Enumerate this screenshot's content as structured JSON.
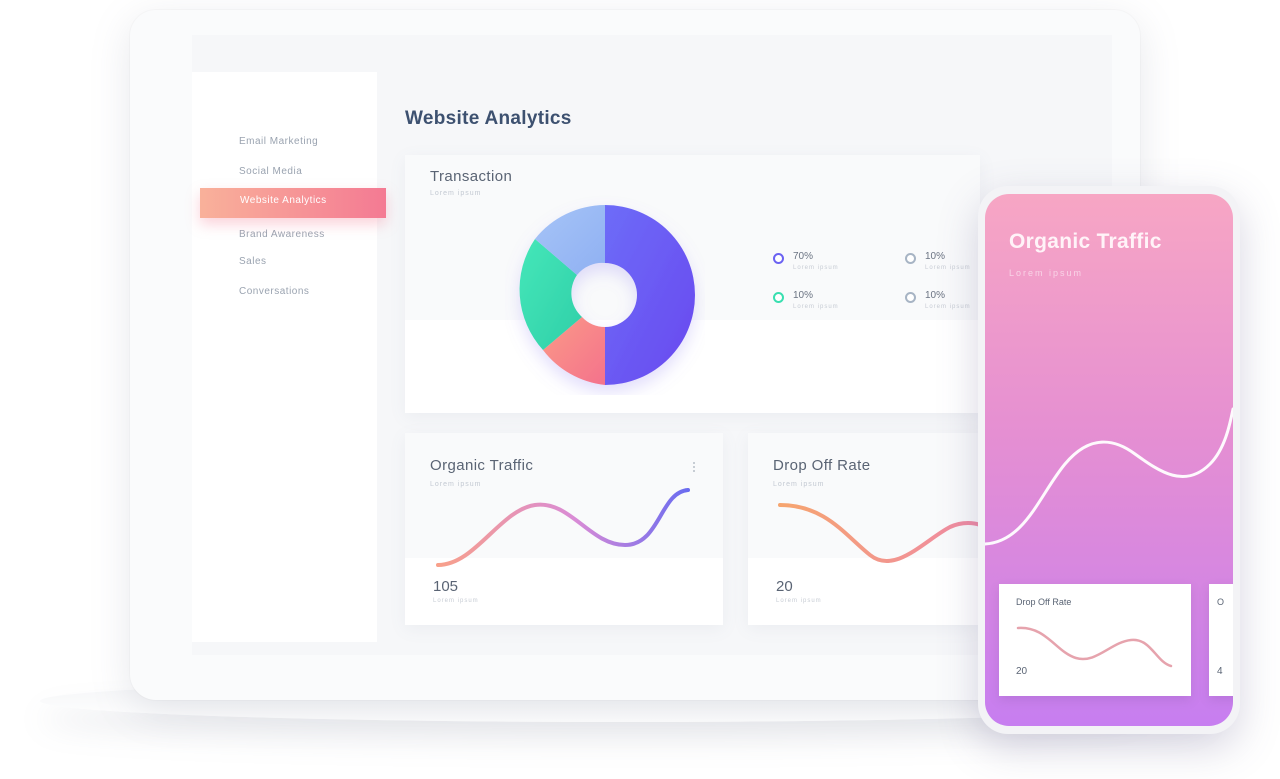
{
  "header": {
    "page_title": "Website Analytics"
  },
  "sidebar": {
    "items": [
      {
        "label": "Email Marketing"
      },
      {
        "label": "Social Media"
      },
      {
        "label": "Website Analytics",
        "active": true
      },
      {
        "label": "Brand Awareness"
      },
      {
        "label": "Sales"
      },
      {
        "label": "Conversations"
      }
    ]
  },
  "transaction": {
    "title": "Transaction",
    "subtitle": "Lorem ipsum",
    "legend": [
      {
        "value": "70%",
        "label": "Lorem ipsum",
        "color": "#6b62f2"
      },
      {
        "value": "10%",
        "label": "Lorem ipsum",
        "color": "#a7b4c4"
      },
      {
        "value": "10%",
        "label": "Lorem ipsum",
        "color": "#39dfb0"
      },
      {
        "value": "10%",
        "label": "Lorem ipsum",
        "color": "#a7b4c4"
      }
    ]
  },
  "organic_traffic": {
    "title": "Organic Traffic",
    "subtitle": "Lorem ipsum",
    "value": "105",
    "value_sub": "Lorem ipsum",
    "menu_icon": "dot-menu"
  },
  "drop_off": {
    "title": "Drop Off Rate",
    "subtitle": "Lorem ipsum",
    "value": "20",
    "value_sub": "Lorem ipsum"
  },
  "phone": {
    "title": "Organic Traffic",
    "subtitle": "Lorem ipsum",
    "card_title": "Drop Off Rate",
    "card_value": "20",
    "second_card_letter": "O",
    "second_card_value": "4"
  },
  "colors": {
    "accent_gradient_start": "#f9b19a",
    "accent_gradient_end": "#f47a93",
    "donut_purple": "#6b62f2",
    "donut_blue": "#95b8f4",
    "donut_green": "#3fe0b6",
    "donut_coral": "#f88a8a"
  }
}
